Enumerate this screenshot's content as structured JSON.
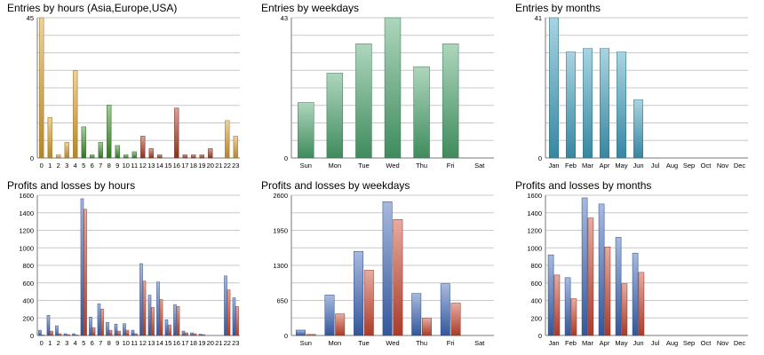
{
  "colors": {
    "grid": "#c8c8c8",
    "axis": "#7a7a7a",
    "text": "#000000",
    "hours_asia": "#d89b2b",
    "hours_europe": "#3b8b2a",
    "hours_usa": "#a33a23",
    "weekdays_bar": "#4aa36d",
    "months_bar": "#3f9fbd",
    "profit": "#3c66b8",
    "loss": "#c8452f"
  },
  "chart_data": [
    {
      "id": "entries-hours",
      "type": "bar",
      "title": "Entries by hours (Asia,Europe,USA)",
      "categories": [
        "0",
        "1",
        "2",
        "3",
        "4",
        "5",
        "6",
        "7",
        "8",
        "9",
        "10",
        "11",
        "12",
        "13",
        "14",
        "15",
        "16",
        "17",
        "18",
        "19",
        "20",
        "21",
        "22",
        "23"
      ],
      "series": [
        {
          "values": [
            45,
            13,
            1,
            5,
            28,
            10,
            1,
            5,
            17,
            4,
            1,
            2,
            7,
            3,
            1,
            0,
            16,
            1,
            1,
            1,
            3,
            0,
            12,
            7
          ]
        }
      ],
      "region_colors": [
        "asia",
        "asia",
        "asia",
        "asia",
        "asia",
        "europe",
        "europe",
        "europe",
        "europe",
        "europe",
        "europe",
        "europe",
        "usa",
        "usa",
        "usa",
        "usa",
        "usa",
        "usa",
        "usa",
        "usa",
        "usa",
        "asia",
        "asia",
        "asia"
      ],
      "ylim": [
        0,
        45
      ],
      "yticks": [
        0,
        45
      ],
      "grid": true
    },
    {
      "id": "entries-weekdays",
      "type": "bar",
      "title": "Entries by weekdays",
      "categories": [
        "Sun",
        "Mon",
        "Tue",
        "Wed",
        "Thu",
        "Fri",
        "Sat"
      ],
      "series": [
        {
          "values": [
            17,
            26,
            35,
            43,
            28,
            35,
            0
          ]
        }
      ],
      "ylim": [
        0,
        43
      ],
      "yticks": [
        0,
        43
      ],
      "grid": true
    },
    {
      "id": "entries-months",
      "type": "bar",
      "title": "Entries by months",
      "categories": [
        "Jan",
        "Feb",
        "Mar",
        "Apr",
        "May",
        "Jun",
        "Jul",
        "Aug",
        "Sep",
        "Oct",
        "Nov",
        "Dec"
      ],
      "series": [
        {
          "values": [
            41,
            31,
            32,
            32,
            31,
            17,
            0,
            0,
            0,
            0,
            0,
            0
          ]
        }
      ],
      "ylim": [
        0,
        41
      ],
      "yticks": [
        0,
        41
      ],
      "grid": true
    },
    {
      "id": "pl-hours",
      "type": "bar",
      "title": "Profits and losses by hours",
      "categories": [
        "0",
        "1",
        "2",
        "3",
        "4",
        "5",
        "6",
        "7",
        "8",
        "9",
        "10",
        "11",
        "12",
        "13",
        "14",
        "15",
        "16",
        "17",
        "18",
        "19",
        "20",
        "21",
        "22",
        "23"
      ],
      "series": [
        {
          "values": [
            60,
            230,
            110,
            20,
            20,
            1560,
            210,
            360,
            150,
            130,
            135,
            60,
            820,
            460,
            610,
            180,
            350,
            50,
            30,
            15,
            0,
            0,
            680,
            430
          ]
        },
        {
          "values": [
            5,
            50,
            20,
            10,
            5,
            1440,
            90,
            300,
            60,
            50,
            60,
            20,
            620,
            320,
            410,
            120,
            330,
            30,
            20,
            10,
            0,
            0,
            520,
            330
          ]
        }
      ],
      "ylim": [
        0,
        1600
      ],
      "yticks": [
        0,
        200,
        400,
        600,
        800,
        1000,
        1200,
        1400,
        1600
      ],
      "grid": true
    },
    {
      "id": "pl-weekdays",
      "type": "bar",
      "title": "Profits and losses by weekdays",
      "categories": [
        "Sun",
        "Mon",
        "Tue",
        "Wed",
        "Thu",
        "Fri",
        "Sat"
      ],
      "series": [
        {
          "values": [
            100,
            750,
            1560,
            2480,
            780,
            960,
            0
          ]
        },
        {
          "values": [
            20,
            400,
            1210,
            2150,
            320,
            600,
            0
          ]
        }
      ],
      "ylim": [
        0,
        2600
      ],
      "yticks": [
        0,
        650,
        1300,
        1950,
        2600
      ],
      "grid": true
    },
    {
      "id": "pl-months",
      "type": "bar",
      "title": "Profits and losses by months",
      "categories": [
        "Jan",
        "Feb",
        "Mar",
        "Apr",
        "May",
        "Jun",
        "Jul",
        "Aug",
        "Sep",
        "Oct",
        "Nov",
        "Dec"
      ],
      "series": [
        {
          "values": [
            920,
            660,
            1570,
            1500,
            1120,
            940,
            0,
            0,
            0,
            0,
            0,
            0
          ]
        },
        {
          "values": [
            690,
            420,
            1340,
            1010,
            590,
            720,
            0,
            0,
            0,
            0,
            0,
            0
          ]
        }
      ],
      "ylim": [
        0,
        1600
      ],
      "yticks": [
        0,
        200,
        400,
        600,
        800,
        1000,
        1200,
        1400,
        1600
      ],
      "grid": true
    }
  ]
}
